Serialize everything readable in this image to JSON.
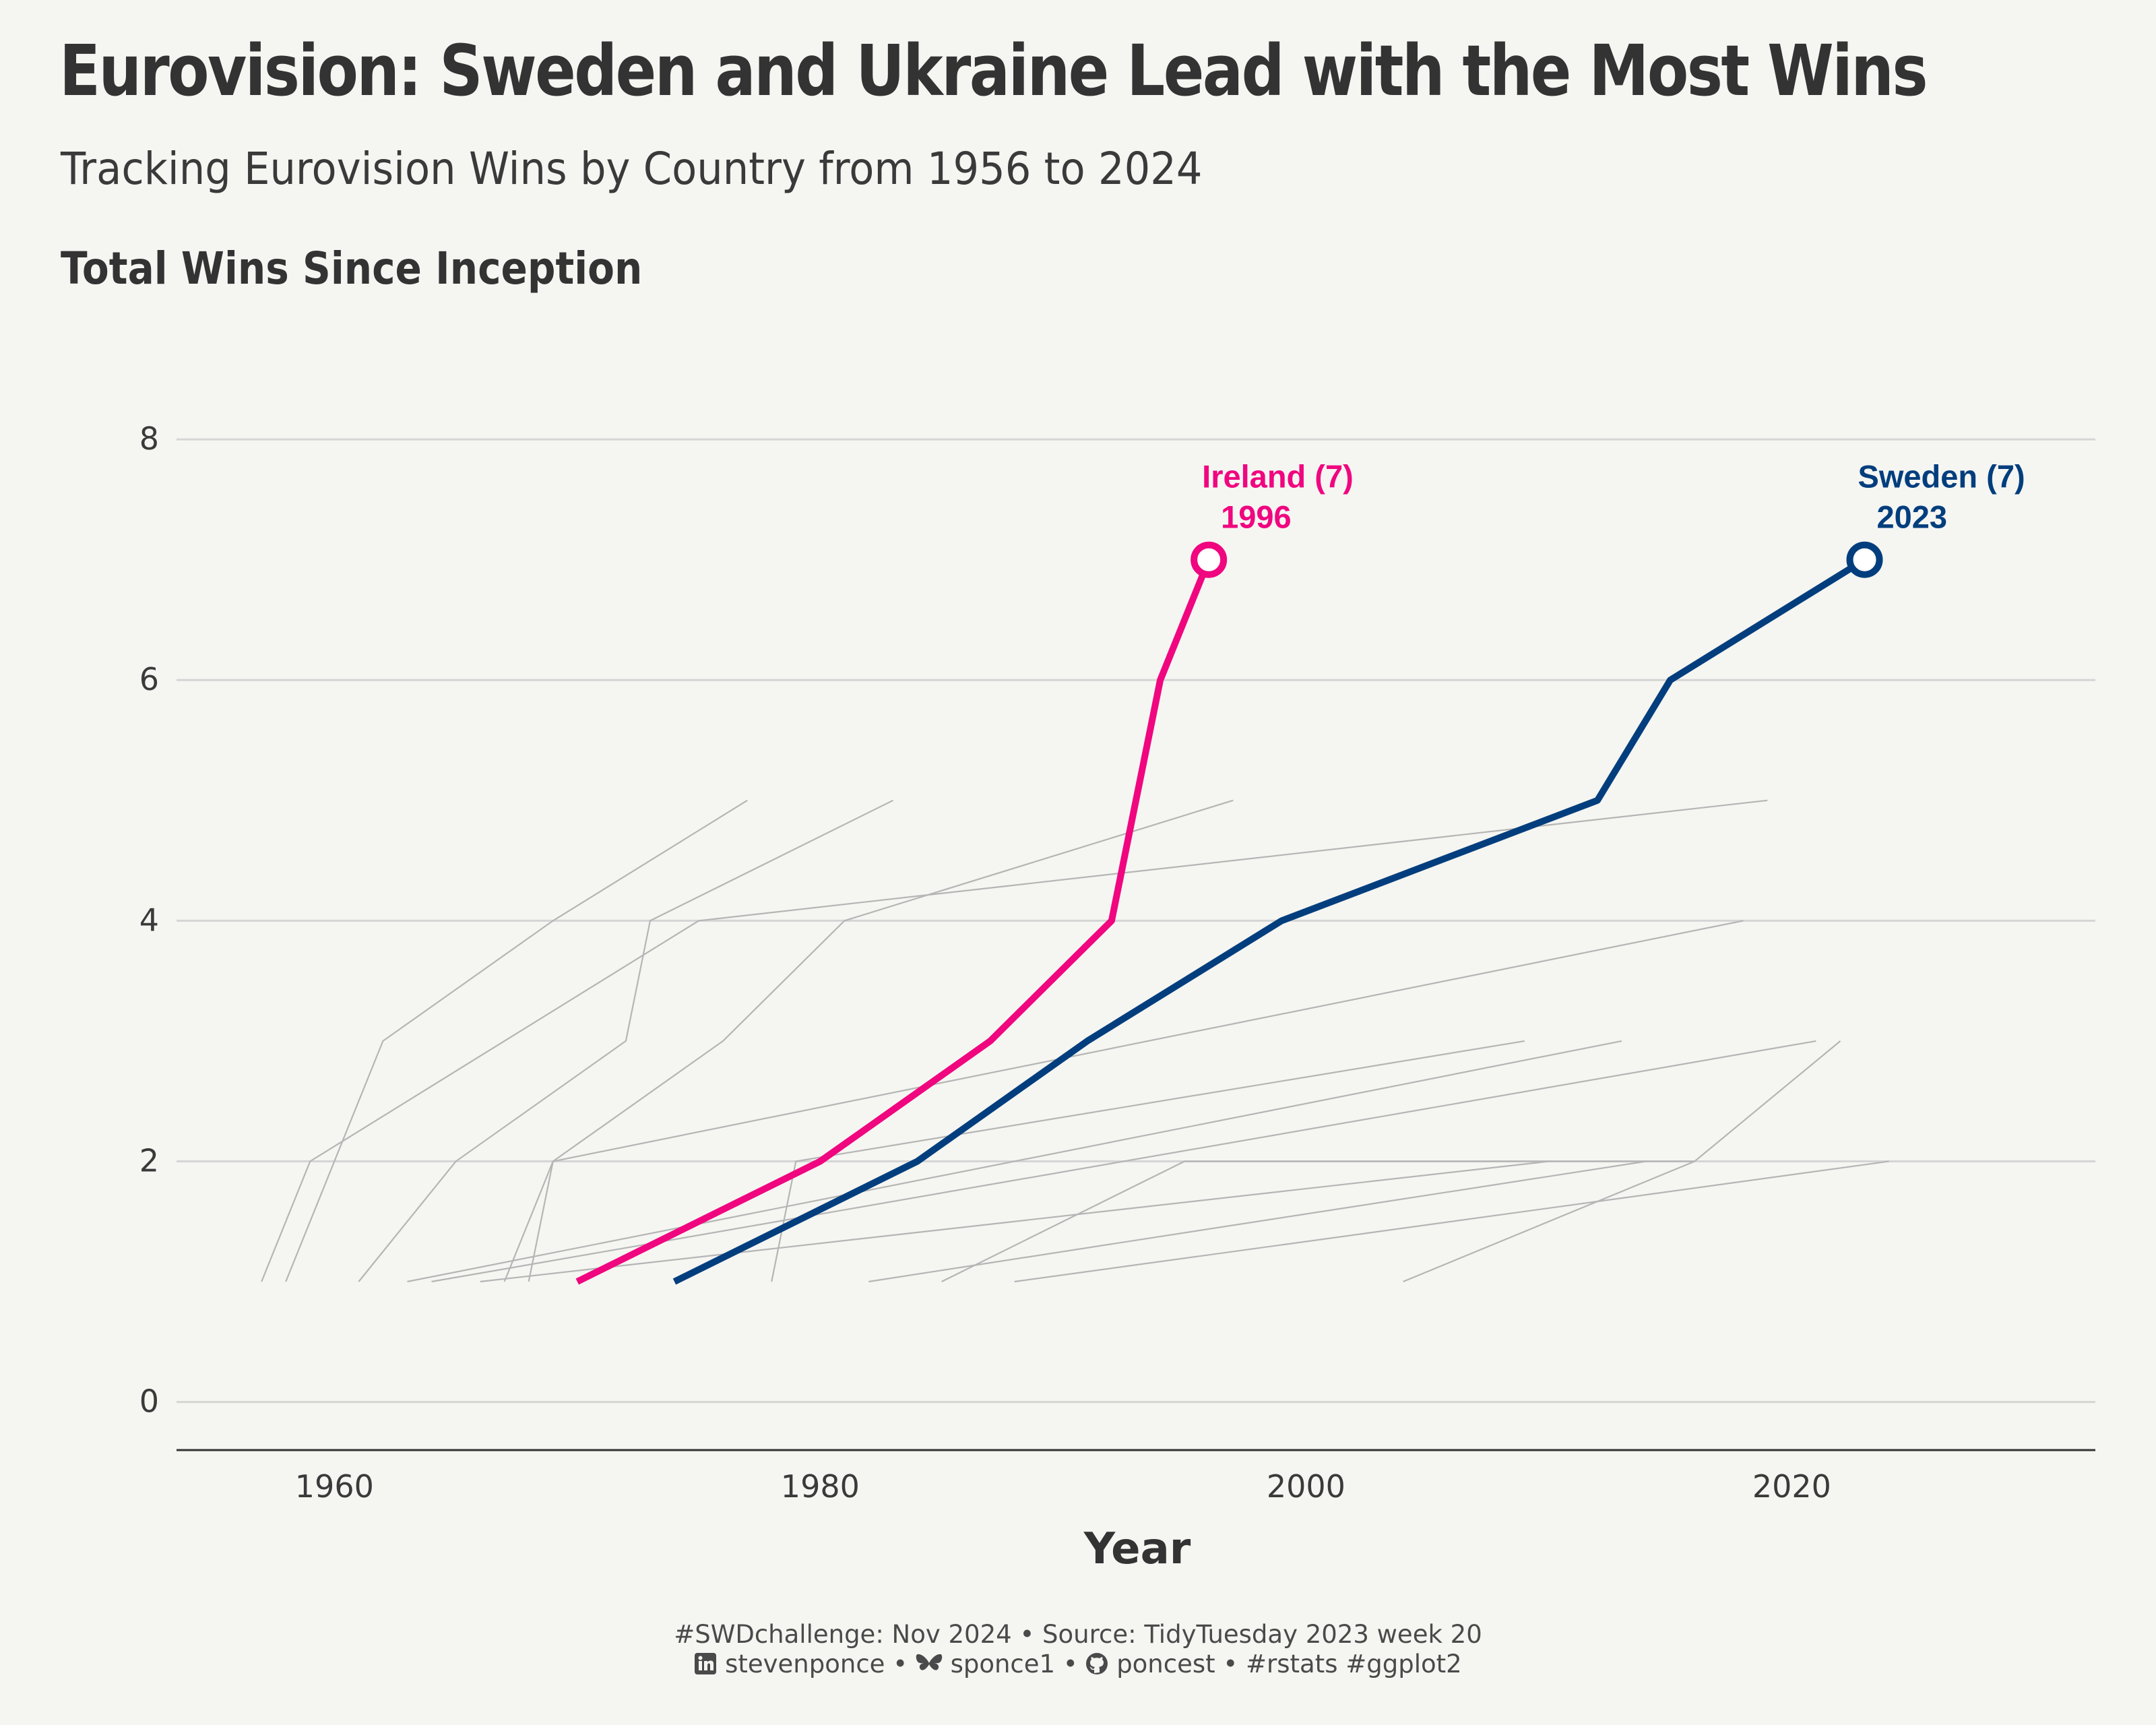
{
  "header": {
    "title": "Eurovision: Sweden and Ukraine Lead with the Most Wins",
    "subtitle": "Tracking Eurovision  Wins by Country from 1956 to 2024",
    "panel_title": "Total Wins Since Inception"
  },
  "caption": {
    "line1": "#SWDchallenge: Nov 2024 • Source: TidyTuesday 2023 week 20",
    "linkedin_handle": "stevenponce",
    "bluesky_handle": "sponce1",
    "github_handle": "poncest",
    "tags": "#rstats #ggplot2",
    "sep": "•"
  },
  "colors": {
    "background": "#f5f5f2",
    "highlight_ireland": "#f0067f",
    "highlight_sweden": "#023e7d",
    "other_lines": "#b5b5b5",
    "grid": "#d5d5d5",
    "text": "#333333"
  },
  "chart_data": {
    "type": "line",
    "title": "Total Wins Since Inception",
    "xlabel": "Year",
    "ylabel": "",
    "xlim": [
      1953.5,
      2032.5
    ],
    "ylim": [
      -0.4,
      8.6
    ],
    "x_ticks": [
      1960,
      1980,
      2000,
      2020
    ],
    "y_ticks": [
      0,
      2,
      4,
      6,
      8
    ],
    "grid": "horizontal",
    "highlighted_series": [
      {
        "name": "Ireland",
        "color": "#f0067f",
        "points": [
          [
            1970,
            1
          ],
          [
            1980,
            2
          ],
          [
            1987,
            3
          ],
          [
            1992,
            4
          ],
          [
            1994,
            6
          ],
          [
            1996,
            7
          ]
        ],
        "label_name": "Ireland (7)",
        "label_year": "1996"
      },
      {
        "name": "Sweden",
        "color": "#023e7d",
        "points": [
          [
            1974,
            1
          ],
          [
            1984,
            2
          ],
          [
            1991,
            3
          ],
          [
            1999,
            4
          ],
          [
            2012,
            5
          ],
          [
            2015,
            6
          ],
          [
            2023,
            7
          ]
        ],
        "label_name": "Sweden (7)",
        "label_year": "2023"
      }
    ],
    "background_series": [
      {
        "points": [
          [
            1958,
            1
          ],
          [
            1962,
            3
          ],
          [
            1969,
            4
          ],
          [
            1977,
            5
          ]
        ]
      },
      {
        "points": [
          [
            1957,
            1
          ],
          [
            1959,
            2
          ],
          [
            1975,
            4
          ],
          [
            2019,
            5
          ]
        ]
      },
      {
        "points": [
          [
            1961,
            1
          ],
          [
            1965,
            2
          ],
          [
            1972,
            3
          ],
          [
            1973,
            4
          ],
          [
            1983,
            5
          ]
        ]
      },
      {
        "points": [
          [
            1967,
            1
          ],
          [
            1969,
            2
          ],
          [
            1976,
            3
          ],
          [
            1981,
            4
          ],
          [
            1997,
            5
          ]
        ]
      },
      {
        "points": [
          [
            1968,
            1
          ],
          [
            1969,
            2
          ],
          [
            2018,
            4
          ]
        ]
      },
      {
        "points": [
          [
            1978,
            1
          ],
          [
            1979,
            2
          ],
          [
            2009,
            3
          ]
        ]
      },
      {
        "points": [
          [
            1963,
            1
          ],
          [
            2013,
            3
          ]
        ]
      },
      {
        "points": [
          [
            1964,
            1
          ],
          [
            2021,
            3
          ]
        ]
      },
      {
        "points": [
          [
            1966,
            1
          ],
          [
            2010,
            2
          ]
        ]
      },
      {
        "points": [
          [
            1982,
            1
          ],
          [
            2014,
            2
          ]
        ]
      },
      {
        "points": [
          [
            1985,
            1
          ],
          [
            1995,
            2
          ],
          [
            2016,
            2
          ],
          [
            2022,
            3
          ]
        ]
      },
      {
        "points": [
          [
            1988,
            1
          ],
          [
            2024,
            2
          ]
        ]
      },
      {
        "points": [
          [
            2004,
            1
          ],
          [
            2016,
            2
          ]
        ]
      }
    ]
  }
}
